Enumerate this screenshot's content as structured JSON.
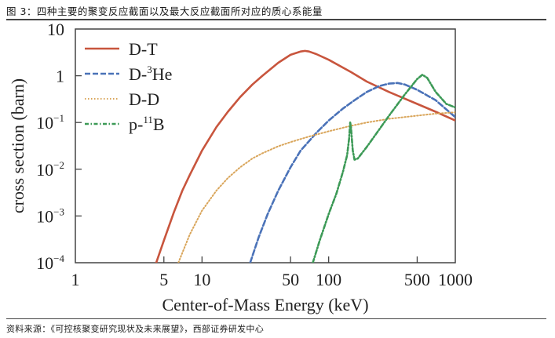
{
  "caption": "图 3：四种主要的聚变反应截面以及最大反应截面所对应的质心系能量",
  "source": "资料来源：《可控核聚变研究现状及未来展望》，西部证券研发中心",
  "chart_data": {
    "type": "line",
    "title": "",
    "xlabel": "Center-of-Mass Energy (keV)",
    "ylabel": "cross section (barn)",
    "xscale": "log",
    "yscale": "log",
    "xlim": [
      1,
      1000
    ],
    "ylim": [
      0.0001,
      10
    ],
    "grid": false,
    "legend_position": "top-left",
    "x_ticks": [
      {
        "value": 1,
        "label": "1"
      },
      {
        "value": 5,
        "label": "5"
      },
      {
        "value": 10,
        "label": "10"
      },
      {
        "value": 50,
        "label": "50"
      },
      {
        "value": 100,
        "label": "100"
      },
      {
        "value": 500,
        "label": "500"
      },
      {
        "value": 1000,
        "label": "1000"
      }
    ],
    "y_ticks": [
      {
        "value": 10,
        "base": "10",
        "exp": ""
      },
      {
        "value": 1,
        "base": "1",
        "exp": ""
      },
      {
        "value": 0.1,
        "base": "10",
        "exp": "−1"
      },
      {
        "value": 0.01,
        "base": "10",
        "exp": "−2"
      },
      {
        "value": 0.001,
        "base": "10",
        "exp": "−3"
      },
      {
        "value": 0.0001,
        "base": "10",
        "exp": "−4"
      }
    ],
    "series": [
      {
        "name": "D-T",
        "label_main": "D-T",
        "label_sup": "",
        "label_tail": "",
        "color": "#c8553d",
        "style": "solid",
        "x": [
          4.35,
          5,
          6,
          7,
          8,
          10,
          13,
          16,
          20,
          25,
          30,
          40,
          50,
          60,
          65,
          70,
          80,
          100,
          150,
          200,
          300,
          500,
          700,
          1000
        ],
        "y": [
          0.0001,
          0.0003,
          0.0012,
          0.0035,
          0.0075,
          0.025,
          0.08,
          0.17,
          0.35,
          0.65,
          1.0,
          1.9,
          2.8,
          3.3,
          3.4,
          3.3,
          2.9,
          2.2,
          1.2,
          0.75,
          0.45,
          0.25,
          0.17,
          0.11
        ]
      },
      {
        "name": "D-3He",
        "label_main": "D-",
        "label_sup": "3",
        "label_tail": "He",
        "color": "#4a72b8",
        "style": "dashed",
        "x": [
          24,
          28,
          33,
          40,
          50,
          60,
          80,
          100,
          130,
          160,
          200,
          250,
          300,
          350,
          400,
          500,
          700,
          1000
        ],
        "y": [
          0.0001,
          0.00035,
          0.0011,
          0.0035,
          0.011,
          0.025,
          0.06,
          0.11,
          0.2,
          0.3,
          0.45,
          0.6,
          0.68,
          0.7,
          0.65,
          0.5,
          0.3,
          0.13
        ]
      },
      {
        "name": "D-D",
        "label_main": "D-D",
        "label_sup": "",
        "label_tail": "",
        "color": "#d9a55a",
        "style": "dotted",
        "x": [
          6.5,
          8,
          10,
          13,
          16,
          20,
          25,
          30,
          40,
          50,
          70,
          100,
          150,
          200,
          300,
          500,
          700,
          1000
        ],
        "y": [
          0.0001,
          0.0004,
          0.0013,
          0.0035,
          0.0065,
          0.011,
          0.017,
          0.022,
          0.031,
          0.038,
          0.05,
          0.065,
          0.085,
          0.1,
          0.12,
          0.14,
          0.155,
          0.165
        ]
      },
      {
        "name": "p-11B",
        "label_main": "p-",
        "label_sup": "11",
        "label_tail": "B",
        "color": "#3d9a57",
        "style": "dashdot",
        "x": [
          75,
          85,
          100,
          115,
          130,
          140,
          145,
          148,
          150,
          152,
          155,
          160,
          170,
          200,
          250,
          300,
          400,
          500,
          550,
          600,
          700,
          850,
          1000
        ],
        "y": [
          0.0001,
          0.0003,
          0.0011,
          0.003,
          0.009,
          0.02,
          0.045,
          0.1,
          0.08,
          0.05,
          0.025,
          0.016,
          0.017,
          0.03,
          0.07,
          0.14,
          0.4,
          0.85,
          1.05,
          0.9,
          0.45,
          0.25,
          0.21
        ]
      }
    ]
  }
}
